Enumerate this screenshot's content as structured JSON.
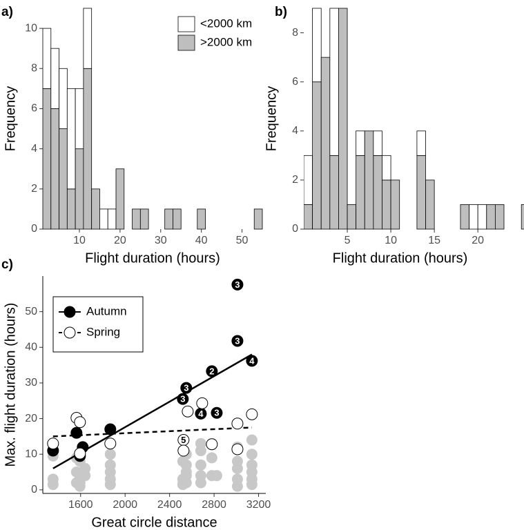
{
  "chart_data": [
    {
      "type": "histogram",
      "panel_label": "a)",
      "xlabel": "Flight duration (hours)",
      "ylabel": "Frequency",
      "bins": [
        1,
        3,
        5,
        7,
        9,
        11,
        13,
        15,
        17,
        19,
        21,
        23,
        25,
        27,
        29,
        31,
        33,
        35,
        37,
        39,
        41,
        43,
        45,
        47,
        49,
        51,
        53,
        55
      ],
      "series": [
        {
          "name": "<2000 km",
          "color": "#ffffff",
          "values": [
            3,
            3,
            3,
            5,
            3,
            3,
            0,
            1,
            1,
            0,
            0,
            0,
            0,
            0,
            0,
            0,
            0,
            0,
            0,
            0,
            0,
            0,
            0,
            0,
            0,
            0,
            0
          ]
        },
        {
          "name": ">2000 km",
          "color": "#bebebe",
          "values": [
            7,
            6,
            5,
            2,
            4,
            8,
            2,
            0,
            0,
            3,
            0,
            1,
            1,
            0,
            0,
            1,
            1,
            0,
            0,
            1,
            0,
            0,
            0,
            0,
            0,
            0,
            1
          ]
        }
      ],
      "stacked": true,
      "legend": "top-right",
      "xlim": [
        1,
        55
      ],
      "ylim": [
        0,
        11
      ],
      "xticks": [
        10,
        20,
        30,
        40,
        50
      ],
      "yticks": [
        0,
        2,
        4,
        6,
        8,
        10
      ]
    },
    {
      "type": "histogram",
      "panel_label": "b)",
      "xlabel": "Flight duration (hours)",
      "ylabel": "Frequency",
      "bins": [
        0,
        1,
        2,
        3,
        4,
        5,
        6,
        7,
        8,
        9,
        10,
        11,
        12,
        13,
        14,
        15,
        16,
        17,
        18,
        19,
        20,
        21,
        22,
        23,
        24,
        25,
        26
      ],
      "series": [
        {
          "color": "#ffffff",
          "values": [
            2,
            3,
            0,
            6,
            0,
            0,
            1,
            0,
            1,
            1,
            0,
            0,
            0,
            1,
            0,
            0,
            0,
            0,
            0,
            1,
            1,
            0,
            0,
            0,
            0,
            0
          ]
        },
        {
          "color": "#bebebe",
          "values": [
            1,
            6,
            7,
            3,
            9,
            1,
            3,
            4,
            3,
            2,
            2,
            0,
            0,
            3,
            2,
            0,
            0,
            0,
            1,
            0,
            0,
            1,
            1,
            0,
            0,
            1
          ]
        }
      ],
      "stacked": true,
      "xlim": [
        0,
        25.3
      ],
      "ylim": [
        0,
        9
      ],
      "xticks": [
        5,
        10,
        15,
        20
      ],
      "yticks": [
        0,
        2,
        4,
        6,
        8
      ]
    },
    {
      "type": "scatter",
      "panel_label": "c)",
      "xlabel": "Great circle distance",
      "ylabel": "Max. flight duration (hours)",
      "series": [
        {
          "color": "#c8c8c8",
          "x": [
            1352,
            1352,
            1352,
            1563,
            1563,
            1563,
            1594,
            1594,
            1594,
            1594,
            1640,
            1640,
            1867,
            1867,
            1867,
            1867,
            1867,
            2519,
            2519,
            2519,
            2550,
            2550,
            2550,
            2550,
            2550,
            2681,
            2681,
            2681,
            2681,
            2681,
            2780,
            2780,
            2780,
            2824,
            3010,
            3010,
            3010,
            3010,
            3010,
            3140,
            3140,
            3140,
            3140,
            3140,
            3140
          ],
          "values": [
            9.5,
            3,
            1.5,
            9,
            5,
            2,
            8,
            4,
            2,
            1,
            6,
            4,
            10,
            7,
            5,
            3,
            1.5,
            8,
            3,
            1.5,
            10,
            7,
            5,
            4,
            2,
            13,
            11,
            7,
            4,
            2,
            13,
            9,
            4,
            4,
            12,
            8,
            6,
            3,
            1,
            14,
            10,
            7,
            5,
            3,
            1.5
          ]
        },
        {
          "name": "Autumn",
          "color": "#000000",
          "line_style": "solid",
          "x": [
            1352,
            1563,
            1619,
            1594,
            1867,
            2519,
            2550,
            2780,
            3010,
            3010,
            3140,
            2681,
            2824
          ],
          "values": [
            11,
            16,
            12,
            9.5,
            17,
            25.5,
            28.6,
            33.3,
            57.6,
            41.8,
            36.2,
            21.4,
            21.6
          ],
          "labels": [
            null,
            null,
            null,
            null,
            null,
            3,
            3,
            2,
            3,
            3,
            4,
            4,
            3
          ],
          "fit": {
            "x": [
              1352,
              3140
            ],
            "y": [
              6,
              38
            ]
          }
        },
        {
          "name": "Spring",
          "color": "#ffffff",
          "line_style": "dashed",
          "x": [
            1352,
            1563,
            1594,
            1594,
            1867,
            2563,
            2693,
            2780,
            2525,
            2525,
            3010,
            3010,
            3140
          ],
          "values": [
            13,
            20.2,
            19,
            10.2,
            13,
            22,
            24.3,
            12.8,
            14,
            11,
            18.6,
            11.4,
            21.2
          ],
          "labels": [
            null,
            null,
            null,
            null,
            null,
            null,
            null,
            null,
            5,
            null,
            null,
            null,
            null
          ],
          "fit": {
            "x": [
              1352,
              3140
            ],
            "y": [
              15,
              17.5
            ]
          }
        }
      ],
      "legend": "top-left",
      "xlim": [
        1260,
        3265
      ],
      "ylim": [
        -1,
        60
      ],
      "xticks": [
        1600,
        2000,
        2400,
        2800,
        3200
      ],
      "yticks": [
        0,
        10,
        20,
        30,
        40,
        50
      ]
    }
  ]
}
